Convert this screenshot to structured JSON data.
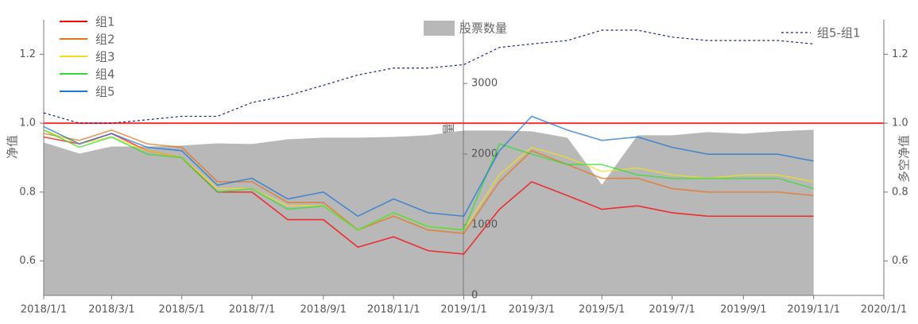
{
  "chart_data": {
    "type": "line",
    "x": [
      "2018/1/1",
      "2018/2/1",
      "2018/3/1",
      "2018/4/1",
      "2018/5/1",
      "2018/6/1",
      "2018/7/1",
      "2018/8/1",
      "2018/9/1",
      "2018/10/1",
      "2018/11/1",
      "2018/12/1",
      "2019/1/1",
      "2019/2/1",
      "2019/3/1",
      "2019/4/1",
      "2019/5/1",
      "2019/6/1",
      "2019/7/1",
      "2019/8/1",
      "2019/9/1",
      "2019/10/1",
      "2019/11/1"
    ],
    "xlim": [
      "2018/1/1",
      "2020/1/1"
    ],
    "xticks": [
      "2018/1/1",
      "2018/3/1",
      "2018/5/1",
      "2018/7/1",
      "2018/9/1",
      "2018/11/1",
      "2019/1/1",
      "2019/3/1",
      "2019/5/1",
      "2019/7/1",
      "2019/9/1",
      "2019/11/1",
      "2020/1/1"
    ],
    "ylabel": "净值",
    "ylim": [
      0.5,
      1.3
    ],
    "yticks": [
      0.6,
      0.8,
      {
        "value": 1.0,
        "label": "1.0"
      },
      1.2
    ],
    "y2label": "多空净值",
    "y2lim": [
      0.5,
      1.3
    ],
    "y2ticks": [
      0.6,
      0.8,
      {
        "value": 1.0,
        "label": "1.0"
      },
      1.2
    ],
    "y3label": "股票数量",
    "y3lim": [
      0,
      3900
    ],
    "y3ticks": [
      0,
      1000,
      2000,
      3000
    ],
    "reference_line": {
      "value": 1.0,
      "color": "#ff3030"
    },
    "area": {
      "name": "股票数量",
      "color": "#b8b8b8",
      "axis": "y3",
      "values": [
        2165,
        2007,
        2108,
        2108,
        2120,
        2153,
        2142,
        2210,
        2232,
        2232,
        2243,
        2266,
        2334,
        2334,
        2323,
        2232,
        1567,
        2266,
        2266,
        2311,
        2289,
        2323,
        2345
      ]
    },
    "series": [
      {
        "name": "组1",
        "color": "#ff0000",
        "values": [
          0.96,
          0.94,
          0.97,
          0.92,
          0.9,
          0.8,
          0.8,
          0.72,
          0.72,
          0.64,
          0.67,
          0.63,
          0.62,
          0.75,
          0.83,
          0.79,
          0.75,
          0.76,
          0.74,
          0.73,
          0.73,
          0.73,
          0.73
        ]
      },
      {
        "name": "组2",
        "color": "#e8711c",
        "values": [
          0.97,
          0.95,
          0.98,
          0.94,
          0.93,
          0.83,
          0.83,
          0.77,
          0.77,
          0.69,
          0.73,
          0.69,
          0.68,
          0.83,
          0.92,
          0.88,
          0.84,
          0.84,
          0.81,
          0.8,
          0.8,
          0.8,
          0.79
        ]
      },
      {
        "name": "组3",
        "color": "#f0e020",
        "values": [
          0.98,
          0.94,
          0.96,
          0.92,
          0.9,
          0.81,
          0.81,
          0.76,
          0.76,
          0.69,
          0.74,
          0.7,
          0.69,
          0.85,
          0.93,
          0.9,
          0.86,
          0.87,
          0.85,
          0.84,
          0.85,
          0.85,
          0.83
        ]
      },
      {
        "name": "组4",
        "color": "#33dd33",
        "values": [
          0.98,
          0.93,
          0.96,
          0.91,
          0.9,
          0.8,
          0.81,
          0.75,
          0.76,
          0.69,
          0.74,
          0.7,
          0.69,
          0.94,
          0.91,
          0.88,
          0.88,
          0.85,
          0.84,
          0.84,
          0.84,
          0.84,
          0.81
        ]
      },
      {
        "name": "组5",
        "color": "#1f77d4",
        "values": [
          0.99,
          0.94,
          0.97,
          0.93,
          0.92,
          0.82,
          0.84,
          0.78,
          0.8,
          0.73,
          0.78,
          0.74,
          0.73,
          0.92,
          1.02,
          0.98,
          0.95,
          0.96,
          0.93,
          0.91,
          0.91,
          0.91,
          0.89
        ]
      },
      {
        "name": "组5-组1",
        "color": "#1a237e",
        "axis": "y2",
        "dashed": true,
        "values": [
          1.03,
          1.0,
          1.0,
          1.01,
          1.02,
          1.02,
          1.06,
          1.08,
          1.11,
          1.14,
          1.16,
          1.16,
          1.17,
          1.22,
          1.23,
          1.24,
          1.27,
          1.27,
          1.25,
          1.24,
          1.24,
          1.24,
          1.23
        ]
      }
    ]
  }
}
